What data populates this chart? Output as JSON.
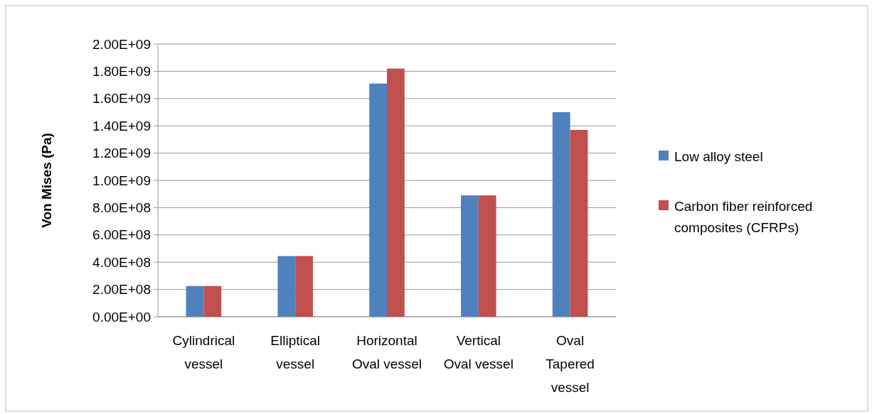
{
  "chart_data": {
    "type": "bar",
    "ylabel": "Von Mises (Pa)",
    "categories": [
      "Cylindrical vessel",
      "Elliptical vessel",
      "Horizontal Oval vessel",
      "Vertical Oval vessel",
      "Oval Tapered vessel"
    ],
    "series": [
      {
        "name": "Low alloy steel",
        "color": "#4f81bd",
        "values": [
          225000000.0,
          445000000.0,
          1710000000.0,
          890000000.0,
          1500000000.0
        ]
      },
      {
        "name": "Carbon fiber reinforced composites (CFRPs)",
        "color": "#c0504d",
        "values": [
          225000000.0,
          445000000.0,
          1820000000.0,
          890000000.0,
          1370000000.0
        ]
      }
    ],
    "ylim": [
      0,
      2000000000.0
    ],
    "yticks": [
      {
        "value": 0,
        "label": "0.00E+00"
      },
      {
        "value": 200000000.0,
        "label": "2.00E+08"
      },
      {
        "value": 400000000.0,
        "label": "4.00E+08"
      },
      {
        "value": 600000000.0,
        "label": "6.00E+08"
      },
      {
        "value": 800000000.0,
        "label": "8.00E+08"
      },
      {
        "value": 1000000000.0,
        "label": "1.00E+09"
      },
      {
        "value": 1200000000.0,
        "label": "1.20E+09"
      },
      {
        "value": 1400000000.0,
        "label": "1.40E+09"
      },
      {
        "value": 1600000000.0,
        "label": "1.60E+09"
      },
      {
        "value": 1800000000.0,
        "label": "1.80E+09"
      },
      {
        "value": 2000000000.0,
        "label": "2.00E+09"
      }
    ],
    "grid": "y",
    "legend": "right"
  }
}
